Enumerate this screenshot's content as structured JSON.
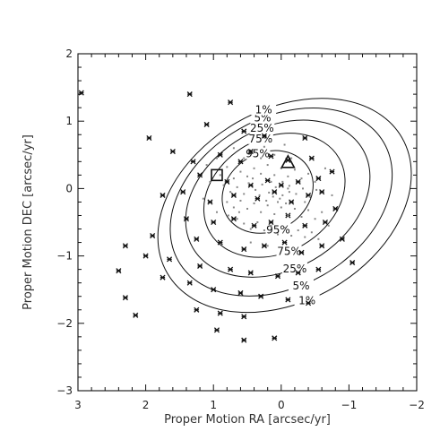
{
  "chart_data": {
    "type": "scatter",
    "title": "",
    "xlabel": "Proper Motion RA [arcsec/yr]",
    "ylabel": "Proper Motion DEC [arcsec/yr]",
    "xlim": [
      3,
      -2
    ],
    "ylim": [
      -3,
      2
    ],
    "x_ticks": [
      3,
      2,
      1,
      0,
      -1,
      -2
    ],
    "y_ticks": [
      -3,
      -2,
      -1,
      0,
      1,
      2
    ],
    "x_tick_labels": [
      "3",
      "2",
      "1",
      "0",
      "−1",
      "−2"
    ],
    "y_tick_labels": [
      "−3",
      "−2",
      "−1",
      "0",
      "1",
      "2"
    ],
    "contours": [
      {
        "label": "95%",
        "center": [
          0.2,
          -0.05
        ],
        "semi_axes": [
          0.7,
          0.58
        ],
        "angle_deg": -30
      },
      {
        "label": "75%",
        "center": [
          0.1,
          -0.1
        ],
        "semi_axes": [
          1.1,
          0.85
        ],
        "angle_deg": -30
      },
      {
        "label": "25%",
        "center": [
          0.05,
          -0.15
        ],
        "semi_axes": [
          1.45,
          1.05
        ],
        "angle_deg": -30
      },
      {
        "label": "5%",
        "center": [
          0.0,
          -0.2
        ],
        "semi_axes": [
          1.75,
          1.25
        ],
        "angle_deg": -30
      },
      {
        "label": "1%",
        "center": [
          -0.05,
          -0.25
        ],
        "semi_axes": [
          2.0,
          1.42
        ],
        "angle_deg": -30
      }
    ],
    "series": [
      {
        "marker": "asterisk",
        "points": [
          [
            2.95,
            1.42
          ],
          [
            1.35,
            1.4
          ],
          [
            0.75,
            1.28
          ],
          [
            1.95,
            0.75
          ],
          [
            1.1,
            0.95
          ],
          [
            0.55,
            0.85
          ],
          [
            0.25,
            0.78
          ],
          [
            -0.35,
            0.75
          ],
          [
            1.6,
            0.55
          ],
          [
            1.3,
            0.4
          ],
          [
            0.9,
            0.5
          ],
          [
            0.6,
            0.4
          ],
          [
            0.45,
            0.55
          ],
          [
            0.15,
            0.48
          ],
          [
            -0.1,
            0.42
          ],
          [
            -0.45,
            0.45
          ],
          [
            1.2,
            0.2
          ],
          [
            0.8,
            0.1
          ],
          [
            0.45,
            0.05
          ],
          [
            0.2,
            0.12
          ],
          [
            0.0,
            0.05
          ],
          [
            -0.25,
            0.1
          ],
          [
            -0.55,
            0.15
          ],
          [
            -0.75,
            0.25
          ],
          [
            1.75,
            -0.1
          ],
          [
            1.45,
            -0.05
          ],
          [
            1.05,
            -0.2
          ],
          [
            0.7,
            -0.1
          ],
          [
            0.35,
            -0.15
          ],
          [
            0.1,
            -0.05
          ],
          [
            -0.15,
            -0.2
          ],
          [
            -0.4,
            -0.1
          ],
          [
            -0.6,
            -0.05
          ],
          [
            -0.8,
            -0.3
          ],
          [
            2.3,
            -0.85
          ],
          [
            1.9,
            -0.7
          ],
          [
            1.4,
            -0.45
          ],
          [
            1.0,
            -0.5
          ],
          [
            0.7,
            -0.45
          ],
          [
            0.4,
            -0.55
          ],
          [
            0.15,
            -0.5
          ],
          [
            -0.1,
            -0.4
          ],
          [
            -0.35,
            -0.55
          ],
          [
            -0.65,
            -0.5
          ],
          [
            1.25,
            -0.75
          ],
          [
            0.9,
            -0.8
          ],
          [
            0.55,
            -0.9
          ],
          [
            0.25,
            -0.85
          ],
          [
            -0.05,
            -0.8
          ],
          [
            -0.3,
            -0.95
          ],
          [
            -0.6,
            -0.85
          ],
          [
            -0.9,
            -0.75
          ],
          [
            2.0,
            -1.0
          ],
          [
            1.65,
            -1.05
          ],
          [
            1.2,
            -1.15
          ],
          [
            0.75,
            -1.2
          ],
          [
            0.45,
            -1.25
          ],
          [
            0.05,
            -1.3
          ],
          [
            -0.25,
            -1.25
          ],
          [
            -0.55,
            -1.2
          ],
          [
            -1.05,
            -1.1
          ],
          [
            2.4,
            -1.22
          ],
          [
            1.75,
            -1.32
          ],
          [
            1.35,
            -1.4
          ],
          [
            1.0,
            -1.5
          ],
          [
            0.6,
            -1.55
          ],
          [
            0.3,
            -1.6
          ],
          [
            -0.1,
            -1.65
          ],
          [
            -0.4,
            -1.7
          ],
          [
            2.3,
            -1.62
          ],
          [
            1.25,
            -1.8
          ],
          [
            0.9,
            -1.85
          ],
          [
            0.55,
            -1.9
          ],
          [
            2.15,
            -1.88
          ],
          [
            0.95,
            -2.1
          ],
          [
            0.55,
            -2.25
          ],
          [
            0.1,
            -2.22
          ]
        ]
      },
      {
        "marker": "dot",
        "points": [
          [
            0.9,
            0.2
          ],
          [
            0.8,
            0.32
          ],
          [
            0.7,
            0.15
          ],
          [
            0.6,
            0.25
          ],
          [
            0.5,
            0.18
          ],
          [
            0.4,
            0.3
          ],
          [
            0.3,
            0.22
          ],
          [
            0.2,
            0.35
          ],
          [
            0.1,
            0.2
          ],
          [
            0.0,
            0.3
          ],
          [
            -0.1,
            0.18
          ],
          [
            -0.2,
            0.28
          ],
          [
            -0.3,
            0.15
          ],
          [
            -0.4,
            0.22
          ],
          [
            -0.5,
            0.1
          ],
          [
            0.85,
            0.05
          ],
          [
            0.75,
            -0.05
          ],
          [
            0.65,
            0.02
          ],
          [
            0.55,
            -0.08
          ],
          [
            0.48,
            0.08
          ],
          [
            0.38,
            -0.02
          ],
          [
            0.28,
            0.06
          ],
          [
            0.18,
            -0.06
          ],
          [
            0.08,
            0.02
          ],
          [
            -0.02,
            -0.1
          ],
          [
            -0.12,
            0.04
          ],
          [
            -0.22,
            -0.08
          ],
          [
            -0.32,
            0.0
          ],
          [
            -0.42,
            -0.12
          ],
          [
            -0.52,
            -0.02
          ],
          [
            0.8,
            -0.2
          ],
          [
            0.7,
            -0.28
          ],
          [
            0.6,
            -0.18
          ],
          [
            0.5,
            -0.3
          ],
          [
            0.4,
            -0.22
          ],
          [
            0.3,
            -0.35
          ],
          [
            0.2,
            -0.25
          ],
          [
            0.1,
            -0.38
          ],
          [
            0.0,
            -0.28
          ],
          [
            -0.1,
            -0.4
          ],
          [
            -0.2,
            -0.3
          ],
          [
            -0.3,
            -0.42
          ],
          [
            -0.4,
            -0.32
          ],
          [
            -0.5,
            -0.45
          ],
          [
            -0.6,
            -0.35
          ],
          [
            0.65,
            -0.45
          ],
          [
            0.55,
            -0.52
          ],
          [
            0.45,
            -0.6
          ],
          [
            0.35,
            -0.5
          ],
          [
            0.25,
            -0.62
          ],
          [
            0.15,
            -0.55
          ],
          [
            0.05,
            -0.68
          ],
          [
            -0.05,
            -0.58
          ],
          [
            -0.15,
            -0.7
          ],
          [
            -0.25,
            -0.62
          ],
          [
            -0.35,
            -0.72
          ],
          [
            -0.45,
            -0.65
          ],
          [
            0.95,
            -0.35
          ],
          [
            1.05,
            0.1
          ],
          [
            1.15,
            -0.15
          ],
          [
            0.3,
            0.45
          ],
          [
            0.1,
            0.5
          ],
          [
            -0.15,
            0.45
          ],
          [
            0.55,
            0.45
          ],
          [
            0.45,
            -0.8
          ],
          [
            0.2,
            -0.85
          ],
          [
            -0.2,
            -0.9
          ],
          [
            -0.55,
            -0.75
          ],
          [
            -0.7,
            -0.55
          ],
          [
            -0.75,
            -0.1
          ],
          [
            -0.65,
            0.3
          ],
          [
            0.95,
            0.45
          ],
          [
            1.1,
            0.35
          ],
          [
            0.7,
            0.6
          ],
          [
            -0.05,
            0.65
          ],
          [
            0.25,
            0.62
          ],
          [
            0.02,
            -0.15
          ],
          [
            -0.07,
            -0.22
          ],
          [
            0.12,
            -0.12
          ],
          [
            0.22,
            -0.18
          ],
          [
            -0.12,
            -0.05
          ],
          [
            -0.02,
            0.1
          ],
          [
            0.32,
            -0.1
          ],
          [
            0.42,
            0.15
          ],
          [
            0.15,
            0.1
          ],
          [
            -0.35,
            -0.2
          ],
          [
            0.62,
            -0.35
          ],
          [
            0.78,
            -0.4
          ],
          [
            -0.1,
            0.0
          ],
          [
            0.05,
            -0.2
          ]
        ]
      }
    ],
    "special_markers": [
      {
        "shape": "square",
        "x": 0.95,
        "y": 0.2
      },
      {
        "shape": "triangle",
        "x": -0.1,
        "y": 0.38
      }
    ]
  }
}
